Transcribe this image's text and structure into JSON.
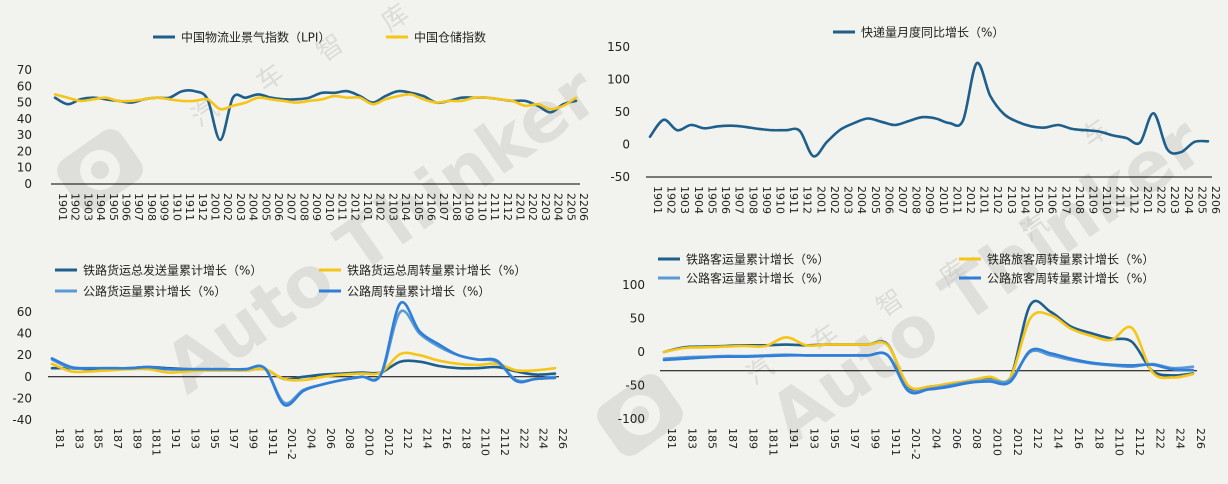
{
  "watermark": {
    "brand": "Auto Thinker",
    "chinese": [
      "汽",
      "车",
      "智",
      "库"
    ]
  },
  "chart_data": [
    {
      "type": "line",
      "x_labels": [
        "1901",
        "1902",
        "1903",
        "1904",
        "1905",
        "1906",
        "1907",
        "1908",
        "1909",
        "1910",
        "1911",
        "1912",
        "2001",
        "2002",
        "2003",
        "2004",
        "2005",
        "2006",
        "2007",
        "2008",
        "2009",
        "2010",
        "2011",
        "2012",
        "2101",
        "2102",
        "2103",
        "2104",
        "2105",
        "2106",
        "2107",
        "2108",
        "2109",
        "2110",
        "2111",
        "2112",
        "2201",
        "2202",
        "2203",
        "2204",
        "2205",
        "2206"
      ],
      "ylim": [
        0,
        70
      ],
      "yticks": [
        0,
        10,
        20,
        30,
        40,
        50,
        60,
        70
      ],
      "legend_position": "top",
      "grid": false,
      "series": [
        {
          "name": "中国物流业景气指数（LPI）",
          "color": "#1f5f8b",
          "values": [
            53,
            49,
            52,
            53,
            52,
            51,
            50,
            52,
            53,
            53,
            57,
            57,
            52,
            27,
            53,
            53,
            55,
            53,
            52,
            52,
            53,
            56,
            56,
            57,
            54,
            50,
            54,
            57,
            56,
            54,
            50,
            51,
            53,
            53,
            53,
            52,
            51,
            51,
            48,
            44,
            49,
            51
          ]
        },
        {
          "name": "中国仓储指数",
          "color": "#f5c518",
          "values": [
            55,
            53,
            51,
            52,
            53,
            51,
            51,
            52,
            53,
            52,
            51,
            51,
            52,
            46,
            48,
            50,
            53,
            52,
            51,
            50,
            51,
            52,
            54,
            53,
            53,
            49,
            52,
            54,
            55,
            52,
            50,
            51,
            51,
            53,
            53,
            52,
            51,
            48,
            49,
            46,
            48,
            53
          ]
        }
      ]
    },
    {
      "type": "line",
      "x_labels": [
        "1901",
        "1902",
        "1903",
        "1904",
        "1905",
        "1906",
        "1907",
        "1908",
        "1909",
        "1910",
        "1911",
        "1912",
        "2001",
        "2002",
        "2003",
        "2004",
        "2005",
        "2006",
        "2007",
        "2008",
        "2009",
        "2010",
        "2011",
        "2012",
        "2101",
        "2102",
        "2103",
        "2104",
        "2105",
        "2106",
        "2107",
        "2108",
        "2109",
        "2110",
        "2111",
        "2112",
        "2201",
        "2202",
        "2203",
        "2204",
        "2205",
        "2206"
      ],
      "ylim": [
        -50,
        150
      ],
      "yticks": [
        -50,
        0,
        50,
        100,
        150
      ],
      "legend_position": "top",
      "grid": false,
      "series": [
        {
          "name": "快递量月度同比增长（%）",
          "color": "#1f5f8b",
          "values": [
            12,
            38,
            22,
            30,
            25,
            28,
            29,
            27,
            24,
            22,
            22,
            21,
            -18,
            4,
            23,
            33,
            40,
            35,
            30,
            36,
            42,
            40,
            33,
            37,
            125,
            75,
            47,
            35,
            28,
            26,
            30,
            24,
            22,
            20,
            14,
            10,
            3,
            48,
            -7,
            -12,
            4,
            5
          ]
        }
      ]
    },
    {
      "type": "line",
      "x_labels": [
        "181",
        "183",
        "185",
        "187",
        "189",
        "1811",
        "191",
        "193",
        "195",
        "197",
        "199",
        "1911",
        "201-2",
        "204",
        "206",
        "208",
        "2010",
        "2012",
        "212",
        "214",
        "216",
        "218",
        "2110",
        "2112",
        "222",
        "224",
        "226"
      ],
      "ylim": [
        -40,
        60
      ],
      "yticks": [
        -40,
        -20,
        0,
        20,
        40,
        60
      ],
      "legend_position": "top",
      "grid": false,
      "series": [
        {
          "name": "铁路货运总发送量累计增长（%）",
          "color": "#1f5f8b",
          "values": [
            8,
            8,
            7,
            7,
            8,
            9,
            8,
            7,
            6,
            6,
            6,
            7,
            -2,
            0,
            2,
            3,
            4,
            4,
            14,
            14,
            10,
            8,
            8,
            9,
            5,
            2,
            3
          ]
        },
        {
          "name": "铁路货运总周转量累计增长（%）",
          "color": "#f5c518",
          "values": [
            12,
            5,
            5,
            6,
            7,
            7,
            4,
            5,
            6,
            6,
            6,
            7,
            -2,
            -3,
            0,
            2,
            3,
            4,
            21,
            20,
            15,
            12,
            11,
            12,
            6,
            6,
            8
          ]
        },
        {
          "name": "公路货运量累计增长（%）",
          "color": "#5b9bd5",
          "values": [
            16,
            8,
            8,
            8,
            8,
            9,
            7,
            7,
            7,
            7,
            7,
            8,
            -24,
            -12,
            -7,
            -3,
            0,
            2,
            60,
            40,
            28,
            20,
            16,
            14,
            -3,
            -2,
            0
          ]
        },
        {
          "name": "公路周转量累计增长（%）",
          "color": "#2f7ed8",
          "values": [
            17,
            9,
            8,
            8,
            8,
            9,
            7,
            7,
            7,
            7,
            7,
            8,
            -26,
            -13,
            -7,
            -3,
            0,
            2,
            68,
            42,
            30,
            20,
            16,
            15,
            -4,
            -2,
            -1
          ]
        }
      ]
    },
    {
      "type": "line",
      "x_labels": [
        "181",
        "183",
        "185",
        "187",
        "189",
        "1811",
        "191",
        "193",
        "195",
        "197",
        "199",
        "1911",
        "201-2",
        "204",
        "206",
        "208",
        "2010",
        "2012",
        "212",
        "214",
        "216",
        "218",
        "2110",
        "2112",
        "222",
        "224",
        "226"
      ],
      "ylim": [
        -100,
        100
      ],
      "yticks": [
        -100,
        -50,
        0,
        50,
        100
      ],
      "legend_position": "top",
      "grid": false,
      "series": [
        {
          "name": "铁路客运量累计增长（%）",
          "color": "#1f5f8b",
          "values": [
            0,
            7,
            8,
            9,
            10,
            10,
            11,
            10,
            11,
            11,
            11,
            11,
            -53,
            -52,
            -48,
            -43,
            -38,
            -40,
            70,
            60,
            38,
            28,
            20,
            15,
            -28,
            -35,
            -32
          ]
        },
        {
          "name": "铁路旅客周转量累计增长（%）",
          "color": "#f5c518",
          "values": [
            0,
            6,
            7,
            8,
            9,
            9,
            22,
            10,
            11,
            11,
            11,
            10,
            -50,
            -52,
            -47,
            -43,
            -37,
            -39,
            50,
            55,
            35,
            24,
            18,
            36,
            -30,
            -38,
            -33
          ]
        },
        {
          "name": "公路客运量累计增长（%）",
          "color": "#5b9bd5",
          "values": [
            -10,
            -8,
            -7,
            -6,
            -6,
            -5,
            -4,
            -5,
            -5,
            -5,
            -5,
            -5,
            -56,
            -55,
            -50,
            -45,
            -42,
            -42,
            0,
            -5,
            -12,
            -17,
            -20,
            -22,
            -18,
            -24,
            -22
          ]
        },
        {
          "name": "公路旅客周转量累计增长（%）",
          "color": "#2f7ed8",
          "values": [
            -12,
            -10,
            -8,
            -7,
            -7,
            -6,
            -5,
            -5,
            -5,
            -5,
            -5,
            -5,
            -58,
            -56,
            -52,
            -46,
            -44,
            -45,
            2,
            -2,
            -10,
            -16,
            -19,
            -20,
            -19,
            -26,
            -27
          ]
        }
      ]
    }
  ]
}
